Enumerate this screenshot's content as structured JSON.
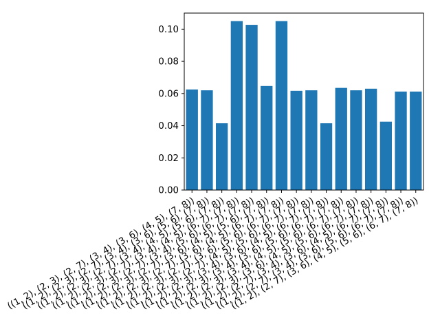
{
  "chart_data": {
    "type": "bar",
    "categories": [
      "((1, 2), (2, 3), (2, 7), (3, 4), (3, 6), (4, 5), (7, 8))",
      "((1, 2), (2, 3), (2, 7), (3, 4), (3, 6), (5, 6), (7, 8))",
      "((1, 2), (2, 3), (2, 7), (3, 4), (4, 5), (5, 6), (7, 8))",
      "((1, 2), (2, 3), (2, 7), (3, 4), (4, 5), (6, 7), (7, 8))",
      "((1, 2), (2, 3), (2, 7), (3, 4), (5, 6), (6, 7), (7, 8))",
      "((1, 2), (2, 3), (2, 7), (3, 6), (4, 5), (5, 6), (7, 8))",
      "((1, 2), (2, 3), (2, 7), (3, 6), (4, 5), (6, 7), (7, 8))",
      "((1, 2), (2, 3), (2, 7), (3, 6), (5, 6), (6, 7), (7, 8))",
      "((1, 2), (2, 3), (2, 7), (4, 5), (5, 6), (6, 7), (7, 8))",
      "((1, 2), (2, 3), (3, 4), (3, 6), (4, 5), (6, 7), (7, 8))",
      "((1, 2), (2, 3), (3, 4), (3, 6), (5, 6), (6, 7), (7, 8))",
      "((1, 2), (2, 3), (3, 4), (4, 5), (5, 6), (6, 7), (7, 8))",
      "((1, 2), (2, 3), (3, 6), (4, 5), (5, 6), (6, 7), (7, 8))",
      "((1, 2), (2, 7), (3, 4), (3, 6), (4, 5), (6, 7), (7, 8))",
      "((1, 2), (2, 7), (3, 4), (3, 6), (5, 6), (6, 7), (7, 8))",
      "((1, 2), (2, 7), (3, 6), (4, 5), (5, 6), (6, 7), (7, 8))"
    ],
    "values": [
      0.0625,
      0.062,
      0.0415,
      0.105,
      0.1027,
      0.0647,
      0.105,
      0.0617,
      0.062,
      0.0415,
      0.0635,
      0.062,
      0.063,
      0.0425,
      0.0612,
      0.0612
    ],
    "title": "",
    "xlabel": "",
    "ylabel": "",
    "ylim": [
      0,
      0.11
    ],
    "yticks": [
      "0.00",
      "0.02",
      "0.04",
      "0.06",
      "0.08",
      "0.10"
    ],
    "ytick_values": [
      0,
      0.02,
      0.04,
      0.06,
      0.08,
      0.1
    ],
    "grid": false,
    "bar_color": "#1f77b4"
  }
}
